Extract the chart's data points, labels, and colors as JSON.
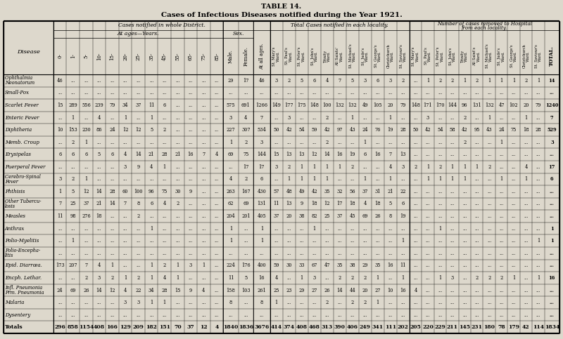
{
  "title1": "TABLE 14.",
  "title2": "Cases of Infectious Diseases notified during the Year 1921.",
  "bg_color": "#ddd8cc",
  "diseases": [
    "Ophthalmia \nNeonatorum",
    "Small-Pox",
    "Scarlet Fever",
    "Enteric Fever",
    "Diphtheria",
    "Memb. Croup",
    "Erysipelas",
    "Puerperal Fever",
    "Cerebro-Spinal \nFever",
    "Phthisis",
    "Other Tubercu-\nlosis",
    "Measles",
    "Anthrax",
    "Polio-Myelitis",
    "Polio-Encepha-\nlitis",
    "Epid. Diarrœa.",
    "Encph. Lethar.",
    "Infl. Pneumonia\nPrm. Pneumonia",
    "Malaria",
    "Dysentery",
    "Totals"
  ],
  "rows": [
    [
      "46",
      "...",
      "...",
      "...",
      "...",
      "...",
      "...",
      "...",
      "...",
      "...",
      "...",
      "...",
      "...",
      "29",
      "17",
      "46",
      "3",
      "2",
      "5",
      "6",
      "4",
      "7",
      "5",
      "3",
      "6",
      "3",
      "2",
      "...",
      "1",
      "2",
      "2",
      "1",
      "2",
      "1",
      "1",
      "1",
      "2",
      "1",
      "14"
    ],
    [
      "...",
      "...",
      "...",
      "...",
      "...",
      "...",
      "...",
      "...",
      "...",
      "...",
      "...",
      "...",
      "...",
      "...",
      "...",
      "...",
      "...",
      "...",
      "...",
      "...",
      "...",
      "...",
      "...",
      "...",
      "...",
      "...",
      "...",
      "...",
      "...",
      "...",
      "...",
      "...",
      "...",
      "...",
      "...",
      "...",
      "...",
      "...",
      "..."
    ],
    [
      "15",
      "289",
      "556",
      "239",
      "79",
      "34",
      "37",
      "11",
      "6",
      "...",
      "...",
      "...",
      "...",
      "575",
      "691",
      "1266",
      "149",
      "177",
      "175",
      "148",
      "100",
      "132",
      "132",
      "49",
      "105",
      "20",
      "79",
      "148",
      "171",
      "170",
      "144",
      "96",
      "131",
      "132",
      "47",
      "102",
      "20",
      "79",
      "1240"
    ],
    [
      "...",
      "1",
      "...",
      "4",
      "...",
      "1",
      "...",
      "1",
      "...",
      "...",
      "...",
      "...",
      "...",
      "3",
      "4",
      "7",
      "...",
      "3",
      "...",
      "...",
      "2",
      "...",
      "1",
      "...",
      "...",
      "1",
      "...",
      "...",
      "3",
      "...",
      "...",
      "2",
      "...",
      "1",
      "...",
      "...",
      "1",
      "...",
      "7"
    ],
    [
      "10",
      "153",
      "230",
      "86",
      "24",
      "12",
      "12",
      "5",
      "2",
      "...",
      "...",
      "...",
      "...",
      "227",
      "307",
      "534",
      "50",
      "42",
      "54",
      "59",
      "42",
      "97",
      "43",
      "24",
      "76",
      "19",
      "28",
      "50",
      "42",
      "54",
      "58",
      "42",
      "95",
      "43",
      "24",
      "75",
      "18",
      "28",
      "529"
    ],
    [
      "...",
      "2",
      "1",
      "...",
      "...",
      "...",
      "...",
      "...",
      "...",
      "...",
      "...",
      "...",
      "...",
      "1",
      "2",
      "3",
      "...",
      "...",
      "...",
      "...",
      "2",
      "...",
      "...",
      "1",
      "...",
      "...",
      "...",
      "...",
      "...",
      "...",
      "...",
      "2",
      "...",
      "...",
      "1",
      "...",
      "...",
      "...",
      "3"
    ],
    [
      "6",
      "6",
      "6",
      "5",
      "6",
      "4",
      "14",
      "21",
      "28",
      "21",
      "16",
      "7",
      "4",
      "69",
      "75",
      "144",
      "15",
      "13",
      "13",
      "12",
      "14",
      "16",
      "19",
      "6",
      "16",
      "7",
      "13",
      "...",
      "...",
      "...",
      "...",
      "...",
      "...",
      "...",
      "...",
      "...",
      "...",
      "...",
      "..."
    ],
    [
      "...",
      "...",
      "...",
      "...",
      "...",
      "3",
      "9",
      "4",
      "1",
      "...",
      "...",
      "...",
      "...",
      "...",
      "17",
      "17",
      "3",
      "2",
      "1",
      "1",
      "1",
      "1",
      "2",
      "...",
      "...",
      "4",
      "3",
      "2",
      "1",
      "2",
      "1",
      "1",
      "1",
      "2",
      "...",
      "...",
      "4",
      "...",
      "17"
    ],
    [
      "3",
      "2",
      "1",
      "...",
      "...",
      "...",
      "...",
      "...",
      "...",
      "...",
      "...",
      "...",
      "...",
      "4",
      "2",
      "6",
      "...",
      "1",
      "1",
      "1",
      "1",
      "...",
      "...",
      "1",
      "...",
      "1",
      "...",
      "...",
      "1",
      "1",
      "1",
      "1",
      "...",
      "...",
      "1",
      "...",
      "1",
      "...",
      "6"
    ],
    [
      "1",
      "5",
      "12",
      "14",
      "28",
      "60",
      "100",
      "96",
      "75",
      "30",
      "9",
      "...",
      "...",
      "263",
      "167",
      "430",
      "57",
      "48",
      "49",
      "42",
      "35",
      "32",
      "56",
      "37",
      "31",
      "21",
      "22",
      "...",
      "...",
      "...",
      "...",
      "...",
      "...",
      "...",
      "...",
      "...",
      "...",
      "...",
      "..."
    ],
    [
      "7",
      "25",
      "37",
      "21",
      "14",
      "7",
      "8",
      "6",
      "4",
      "2",
      "...",
      "...",
      "...",
      "62",
      "69",
      "131",
      "11",
      "13",
      "9",
      "18",
      "12",
      "17",
      "18",
      "4",
      "18",
      "5",
      "6",
      "...",
      "...",
      "...",
      "...",
      "...",
      "...",
      "...",
      "...",
      "...",
      "...",
      "...",
      "..."
    ],
    [
      "11",
      "98",
      "276",
      "18",
      "...",
      "...",
      "2",
      "...",
      "...",
      "...",
      "...",
      "...",
      "...",
      "204",
      "201",
      "405",
      "37",
      "20",
      "38",
      "82",
      "25",
      "37",
      "45",
      "69",
      "26",
      "8",
      "19",
      "...",
      "...",
      "...",
      "...",
      "...",
      "...",
      "...",
      "...",
      "...",
      "...",
      "...",
      "..."
    ],
    [
      "...",
      "...",
      "...",
      "...",
      "...",
      "...",
      "...",
      "1",
      "...",
      "...",
      "...",
      "...",
      "...",
      "1",
      "...",
      "1",
      "...",
      "...",
      "...",
      "1",
      "...",
      "...",
      "...",
      "...",
      "...",
      "...",
      "...",
      "...",
      "...",
      "1",
      "...",
      "...",
      "...",
      "...",
      "...",
      "...",
      "...",
      "...",
      "1"
    ],
    [
      "...",
      "1",
      "...",
      "...",
      "...",
      "...",
      "...",
      "...",
      "...",
      "...",
      "...",
      "...",
      "...",
      "1",
      "...",
      "1",
      "...",
      "...",
      "...",
      "...",
      "...",
      "...",
      "...",
      "...",
      "...",
      "...",
      "1",
      "...",
      "...",
      "...",
      "...",
      "...",
      "...",
      "...",
      "...",
      "...",
      "...",
      "1",
      "1"
    ],
    [
      "...",
      "...",
      "...",
      "...",
      "...",
      "...",
      "...",
      "...",
      "...",
      "...",
      "...",
      "...",
      "...",
      "...",
      "...",
      "...",
      "...",
      "...",
      "...",
      "...",
      "...",
      "...",
      "...",
      "...",
      "...",
      "...",
      "...",
      "...",
      "...",
      "...",
      "...",
      "...",
      "...",
      "...",
      "...",
      "...",
      "...",
      "...",
      "..."
    ],
    [
      "173",
      "207",
      "7",
      "4",
      "1",
      "...",
      "...",
      "1",
      "2",
      "1",
      "3",
      "1",
      "...",
      "224",
      "176",
      "400",
      "59",
      "30",
      "33",
      "67",
      "47",
      "35",
      "38",
      "29",
      "35",
      "16",
      "11",
      "...",
      "...",
      "...",
      "...",
      "...",
      "...",
      "...",
      "...",
      "...",
      "...",
      "...",
      "..."
    ],
    [
      "...",
      "...",
      "2",
      "3",
      "2",
      "1",
      "2",
      "1",
      "4",
      "1",
      "...",
      "...",
      "...",
      "11",
      "5",
      "16",
      "4",
      "...",
      "1",
      "3",
      "...",
      "2",
      "2",
      "2",
      "1",
      "...",
      "1",
      "...",
      "...",
      "1",
      "3",
      "...",
      "2",
      "2",
      "2",
      "1",
      "...",
      "1",
      "16"
    ],
    [
      "24",
      "69",
      "26",
      "14",
      "12",
      "4",
      "22",
      "34",
      "28",
      "15",
      "9",
      "4",
      "...",
      "158",
      "103",
      "261",
      "25",
      "23",
      "29",
      "27",
      "26",
      "14",
      "44",
      "20",
      "27",
      "10",
      "16",
      "4",
      "...",
      "...",
      "...",
      "...",
      "...",
      "...",
      "...",
      "...",
      "...",
      "...",
      "..."
    ],
    [
      "...",
      "...",
      "...",
      "...",
      "...",
      "3",
      "3",
      "1",
      "1",
      "...",
      "...",
      "...",
      "...",
      "8",
      "...",
      "8",
      "1",
      "...",
      "...",
      "...",
      "2",
      "...",
      "2",
      "2",
      "1",
      "...",
      "...",
      "...",
      "...",
      "...",
      "...",
      "...",
      "...",
      "...",
      "...",
      "...",
      "...",
      "...",
      "..."
    ],
    [
      "...",
      "...",
      "...",
      "...",
      "...",
      "...",
      "...",
      "...",
      "...",
      "...",
      "...",
      "...",
      "...",
      "...",
      "...",
      "...",
      "...",
      "...",
      "...",
      "...",
      "...",
      "...",
      "...",
      "...",
      "...",
      "...",
      "...",
      "...",
      "...",
      "...",
      "...",
      "...",
      "...",
      "...",
      "...",
      "...",
      "...",
      "...",
      "..."
    ],
    [
      "296",
      "858",
      "1154",
      "408",
      "166",
      "129",
      "209",
      "182",
      "151",
      "70",
      "37",
      "12",
      "4",
      "1840",
      "1836",
      "3676",
      "414",
      "374",
      "408",
      "468",
      "313",
      "390",
      "406",
      "249",
      "341",
      "111",
      "202",
      "205",
      "220",
      "229",
      "211",
      "145",
      "231",
      "180",
      "78",
      "179",
      "42",
      "114",
      "1834"
    ]
  ],
  "age_labels": [
    "0-",
    "1-",
    "5-",
    "10-",
    "15-",
    "20-",
    "25-",
    "35-",
    "45-",
    "55-65-75-85-"
  ],
  "col_headers_age13": [
    "0-",
    "1-",
    "5-",
    "10-",
    "15-",
    "20-",
    "25-",
    "35-",
    "45-",
    "55-",
    "65-",
    "75-",
    "85-"
  ],
  "col_headers_sex": [
    "Male.",
    "Female."
  ],
  "col_headers_loc": [
    "St. Mary's Ward.",
    "St. Paul's Ward.",
    "St. Peter's Ward.",
    "St. John's Ward.",
    "Trinity Ward.",
    "All Saints' Ward.",
    "St. Michael's Ward.",
    "St. Jude's Ward.",
    "St. George's Ward.",
    "Christchurch Ward.",
    "St. Saviour's Ward."
  ],
  "col_headers_hosp": [
    "St. Mary's Ward.",
    "St. Paul's Ward.",
    "St. Peter's Ward.",
    "St. John's Ward.",
    "Trinity Ward.",
    "All Saint's Ward.",
    "St. Michael's Ward.",
    "St. Jude's Ward.",
    "St. George's Ward.",
    "Christchurch Ward.",
    "St. Saviour's Ward."
  ]
}
